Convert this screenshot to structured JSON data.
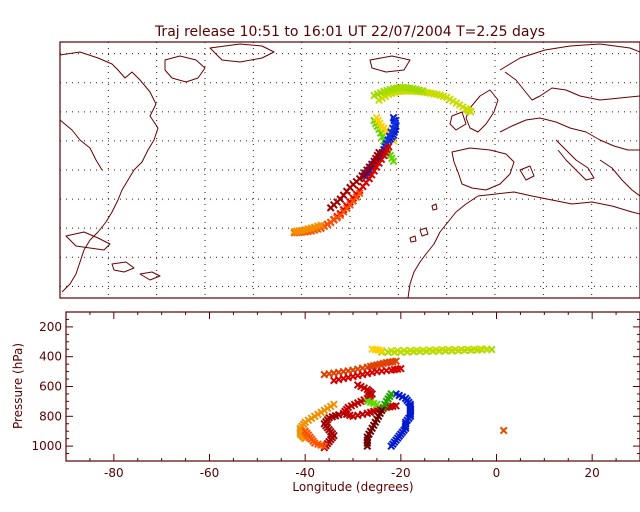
{
  "title": "Traj release 10:51 to 16:01 UT 22/07/2004    T=2.25 days",
  "colors": {
    "frame": "#5a0000",
    "coast": "#6a0000"
  },
  "chart_data": [
    {
      "type": "scatter",
      "panel": "map",
      "title": "Traj release 10:51 to 16:01 UT 22/07/2004    T=2.25 days",
      "xlim": [
        -90,
        30
      ],
      "ylim": [
        18,
        62
      ],
      "grid": true,
      "series": [
        {
          "color": "#c8dc00",
          "points": [
            [
              -24,
              52
            ],
            [
              -22,
              53
            ],
            [
              -20,
              53.5
            ],
            [
              -18,
              53.6
            ],
            [
              -16,
              53.5
            ],
            [
              -14,
              53.3
            ],
            [
              -12,
              53
            ],
            [
              -10,
              52.5
            ],
            [
              -8,
              51.5
            ],
            [
              -6,
              50.5
            ],
            [
              -5,
              50
            ]
          ]
        },
        {
          "color": "#a0dc00",
          "points": [
            [
              -25,
              52.8
            ],
            [
              -23,
              53.5
            ],
            [
              -21,
              54
            ],
            [
              -19,
              54.2
            ],
            [
              -17,
              54
            ],
            [
              -15,
              53.6
            ]
          ]
        },
        {
          "color": "#60d800",
          "points": [
            [
              -25,
              48.5
            ],
            [
              -24,
              47
            ],
            [
              -23,
              45
            ],
            [
              -22,
              43
            ],
            [
              -21,
              41.5
            ]
          ]
        },
        {
          "color": "#ffd000",
          "points": [
            [
              -24.5,
              49
            ],
            [
              -23.5,
              47.5
            ],
            [
              -22,
              46.5
            ],
            [
              -21,
              45
            ]
          ]
        },
        {
          "color": "#0018d0",
          "points": [
            [
              -21,
              49
            ],
            [
              -20.5,
              47.5
            ],
            [
              -21,
              46
            ],
            [
              -22,
              45
            ],
            [
              -23,
              43.5
            ],
            [
              -24,
              42
            ],
            [
              -25.5,
              40.5
            ],
            [
              -27,
              39
            ]
          ]
        },
        {
          "color": "#1030e0",
          "points": [
            [
              -20.5,
              48.5
            ],
            [
              -21.5,
              46.5
            ],
            [
              -22.5,
              44.5
            ]
          ]
        },
        {
          "color": "#d80000",
          "points": [
            [
              -22,
              44
            ],
            [
              -23,
              42.5
            ],
            [
              -24.5,
              40.5
            ],
            [
              -26,
              38.5
            ],
            [
              -28,
              36.5
            ],
            [
              -30,
              34.5
            ],
            [
              -32,
              32.5
            ],
            [
              -34,
              31
            ],
            [
              -36,
              30
            ]
          ]
        },
        {
          "color": "#a00000",
          "points": [
            [
              -24,
              43
            ],
            [
              -25,
              41.5
            ],
            [
              -26.5,
              40
            ],
            [
              -28,
              38.5
            ],
            [
              -30,
              37
            ],
            [
              -32,
              35
            ],
            [
              -34,
              33.5
            ]
          ]
        },
        {
          "color": "#ff5000",
          "points": [
            [
              -28,
              36
            ],
            [
              -30,
              34
            ],
            [
              -32,
              32.2
            ],
            [
              -34,
              31
            ],
            [
              -36,
              30
            ],
            [
              -38,
              29.5
            ],
            [
              -40,
              29.3
            ],
            [
              -41.5,
              29.2
            ]
          ]
        },
        {
          "color": "#f09000",
          "points": [
            [
              -36,
              30.5
            ],
            [
              -38,
              30
            ],
            [
              -40,
              29.6
            ],
            [
              -41.5,
              29.4
            ]
          ]
        }
      ]
    },
    {
      "type": "scatter",
      "panel": "pressure",
      "xlabel": "Longitude  (degrees)",
      "ylabel": "Pressure  (hPa)",
      "xlim": [
        -90,
        30
      ],
      "ylim": [
        1100,
        100
      ],
      "xticks": [
        -80,
        -60,
        -40,
        -20,
        0,
        20
      ],
      "yticks": [
        200,
        400,
        600,
        800,
        1000
      ],
      "series": [
        {
          "color": "#a0dc00",
          "points": [
            [
              -24,
              370
            ],
            [
              -20,
              370
            ],
            [
              -16,
              365
            ],
            [
              -12,
              362
            ],
            [
              -8,
              360
            ],
            [
              -4,
              355
            ],
            [
              -1,
              352
            ]
          ]
        },
        {
          "color": "#c8dc00",
          "points": [
            [
              -22,
              360
            ],
            [
              -18,
              358
            ],
            [
              -14,
              355
            ],
            [
              -10,
              352
            ],
            [
              -6,
              350
            ],
            [
              -2,
              348
            ]
          ]
        },
        {
          "color": "#ffd000",
          "points": [
            [
              -26,
              350
            ],
            [
              -24,
              358
            ]
          ]
        },
        {
          "color": "#e04000",
          "points": [
            [
              -36,
              520
            ],
            [
              -33,
              505
            ],
            [
              -30,
              490
            ],
            [
              -27,
              470
            ],
            [
              -25,
              455
            ],
            [
              -23,
              440
            ],
            [
              -21,
              430
            ]
          ]
        },
        {
          "color": "#d80000",
          "points": [
            [
              -34,
              560
            ],
            [
              -31,
              540
            ],
            [
              -28,
              520
            ],
            [
              -25,
              500
            ],
            [
              -22,
              490
            ],
            [
              -20,
              480
            ]
          ]
        },
        {
          "color": "#c00000",
          "points": [
            [
              -29,
              590
            ],
            [
              -27,
              620
            ],
            [
              -26,
              650
            ],
            [
              -27,
              680
            ],
            [
              -29,
              710
            ],
            [
              -31,
              740
            ],
            [
              -32,
              780
            ],
            [
              -30,
              800
            ],
            [
              -27,
              780
            ],
            [
              -25,
              760
            ],
            [
              -23,
              740
            ],
            [
              -21,
              730
            ]
          ]
        },
        {
          "color": "#a00000",
          "points": [
            [
              -33,
              790
            ],
            [
              -35,
              810
            ],
            [
              -36,
              850
            ],
            [
              -35,
              890
            ],
            [
              -34,
              930
            ],
            [
              -35,
              970
            ],
            [
              -36,
              1010
            ]
          ]
        },
        {
          "color": "#f09000",
          "points": [
            [
              -34,
              720
            ],
            [
              -36,
              760
            ],
            [
              -38,
              800
            ],
            [
              -40,
              840
            ],
            [
              -41,
              880
            ],
            [
              -41,
              920
            ],
            [
              -40,
              950
            ]
          ]
        },
        {
          "color": "#ff5000",
          "points": [
            [
              -40,
              900
            ],
            [
              -39,
              940
            ],
            [
              -38,
              980
            ],
            [
              -36,
              1000
            ]
          ]
        },
        {
          "color": "#0018d0",
          "points": [
            [
              -21,
              650
            ],
            [
              -19,
              680
            ],
            [
              -18,
              720
            ],
            [
              -18,
              760
            ],
            [
              -18,
              800
            ],
            [
              -19,
              840
            ],
            [
              -19,
              880
            ],
            [
              -20,
              920
            ],
            [
              -21,
              960
            ],
            [
              -22,
              1000
            ]
          ]
        },
        {
          "color": "#20a000",
          "points": [
            [
              -22,
              650
            ],
            [
              -23,
              700
            ],
            [
              -24,
              760
            ]
          ]
        },
        {
          "color": "#60d800",
          "points": [
            [
              -27,
              700
            ],
            [
              -25,
              720
            ]
          ]
        },
        {
          "color": "#700000",
          "points": [
            [
              -24,
              760
            ],
            [
              -25,
              820
            ],
            [
              -26,
              880
            ],
            [
              -27,
              940
            ],
            [
              -27,
              1000
            ]
          ]
        },
        {
          "color": "#e05000",
          "points": [
            [
              1.5,
              895
            ]
          ]
        }
      ]
    }
  ]
}
